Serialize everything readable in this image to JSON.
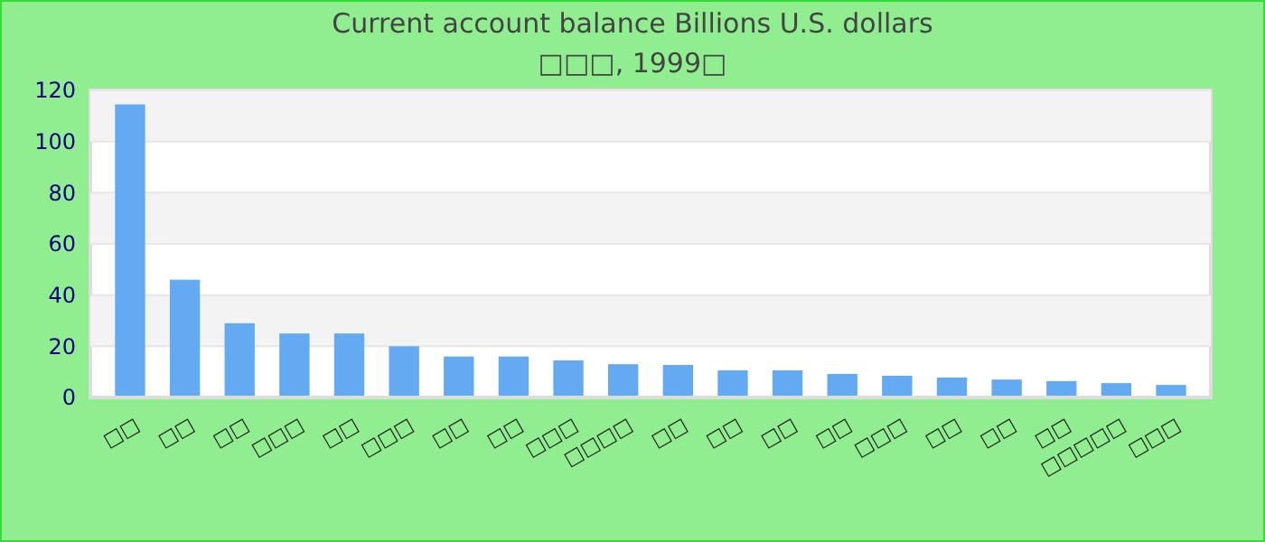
{
  "chart_data": {
    "type": "bar",
    "title": "Current account balance Billions U.S. dollars",
    "subtitle": "□□□, 1999□",
    "categories": [
      "□□",
      "□□",
      "□□",
      "□□□",
      "□□",
      "□□□",
      "□□",
      "□□",
      "□□□",
      "□□□□",
      "□□",
      "□□",
      "□□",
      "□□",
      "□□□",
      "□□",
      "□□",
      "□□",
      "□□□□□",
      "□□□"
    ],
    "values": [
      114.5,
      46,
      29,
      25,
      25,
      20,
      16,
      16,
      14.5,
      13,
      12.7,
      10.6,
      10.6,
      9.2,
      8.5,
      7.8,
      7,
      6.4,
      5.6,
      4.9
    ],
    "color": "#63aaf2",
    "ylim": [
      0,
      120
    ],
    "yticks": [
      0,
      20,
      40,
      60,
      80,
      100,
      120
    ],
    "grid": "y"
  }
}
